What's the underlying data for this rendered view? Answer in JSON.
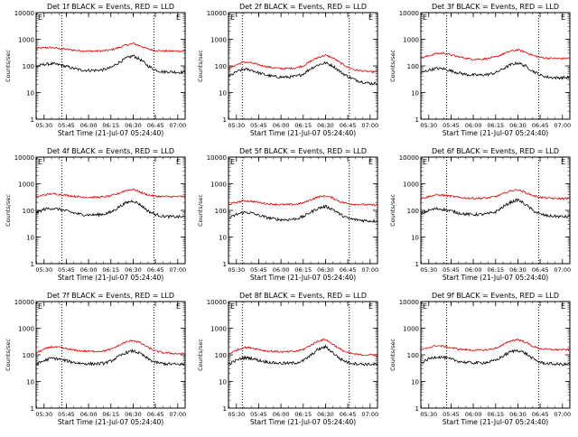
{
  "xtick_labels": [
    "05:30",
    "05:45",
    "06:00",
    "06:15",
    "06:30",
    "06:45",
    "07:00"
  ],
  "ytick_labels": [
    "1",
    "10",
    "100",
    "1000",
    "10000"
  ],
  "ylabel": "Counts/sec",
  "xlabel": "Start Time (21-Jul-07 05:24:40)",
  "colors": {
    "events": "#000000",
    "lld": "#dd0000",
    "axes": "#000000"
  },
  "chart_data": [
    {
      "type": "line",
      "title": "Det 1f BLACK = Events, RED = LLD",
      "marker": "E",
      "xlabel": "Start Time (21-Jul-07 05:24:40)",
      "ylabel": "Counts/sec",
      "xticks": [
        "05:30",
        "05:45",
        "06:00",
        "06:15",
        "06:30",
        "06:45",
        "07:00"
      ],
      "yscale": "log",
      "ylim": [
        1,
        10000
      ],
      "x": [
        "05:25",
        "05:30",
        "05:35",
        "05:40",
        "05:45",
        "05:50",
        "05:55",
        "06:00",
        "06:05",
        "06:10",
        "06:15",
        "06:20",
        "06:25",
        "06:30",
        "06:35",
        "06:40",
        "06:45",
        "06:50",
        "06:55",
        "07:00",
        "07:05"
      ],
      "vlines": [
        "05:42",
        "06:44"
      ],
      "series": [
        {
          "name": "LLD",
          "color": "#dd0000",
          "values": [
            450,
            480,
            490,
            450,
            420,
            390,
            370,
            360,
            360,
            370,
            400,
            480,
            600,
            700,
            560,
            430,
            380,
            360,
            360,
            360,
            360
          ]
        },
        {
          "name": "Events",
          "color": "#000000",
          "values": [
            95,
            115,
            120,
            110,
            95,
            80,
            70,
            68,
            68,
            72,
            85,
            130,
            190,
            240,
            170,
            100,
            70,
            60,
            60,
            58,
            58
          ]
        }
      ]
    },
    {
      "type": "line",
      "title": "Det 2f BLACK = Events, RED = LLD",
      "marker": "E",
      "xlabel": "Start Time (21-Jul-07 05:24:40)",
      "ylabel": "Counts/sec",
      "xticks": [
        "05:30",
        "05:45",
        "06:00",
        "06:15",
        "06:30",
        "06:45",
        "07:00"
      ],
      "yscale": "log",
      "ylim": [
        1,
        10000
      ],
      "x": [
        "05:25",
        "05:30",
        "05:35",
        "05:40",
        "05:45",
        "05:50",
        "05:55",
        "06:00",
        "06:05",
        "06:10",
        "06:15",
        "06:20",
        "06:25",
        "06:30",
        "06:35",
        "06:40",
        "06:45",
        "06:50",
        "06:55",
        "07:00",
        "07:05"
      ],
      "vlines": [
        "05:34",
        "06:46"
      ],
      "series": [
        {
          "name": "LLD",
          "color": "#dd0000",
          "values": [
            80,
            110,
            140,
            130,
            110,
            95,
            85,
            80,
            80,
            85,
            100,
            150,
            210,
            250,
            200,
            130,
            90,
            70,
            65,
            60,
            60
          ]
        },
        {
          "name": "Events",
          "color": "#000000",
          "values": [
            40,
            60,
            75,
            70,
            55,
            45,
            40,
            38,
            38,
            40,
            50,
            80,
            110,
            130,
            100,
            60,
            40,
            30,
            25,
            22,
            22
          ]
        }
      ]
    },
    {
      "type": "line",
      "title": "Det 3f BLACK = Events, RED = LLD",
      "marker": "E",
      "xlabel": "Start Time (21-Jul-07 05:24:40)",
      "ylabel": "Counts/sec",
      "xticks": [
        "05:30",
        "05:45",
        "06:00",
        "06:15",
        "06:30",
        "06:45",
        "07:00"
      ],
      "yscale": "log",
      "ylim": [
        1,
        10000
      ],
      "x": [
        "05:25",
        "05:30",
        "05:35",
        "05:40",
        "05:45",
        "05:50",
        "05:55",
        "06:00",
        "06:05",
        "06:10",
        "06:15",
        "06:20",
        "06:25",
        "06:30",
        "06:35",
        "06:40",
        "06:45",
        "06:50",
        "06:55",
        "07:00",
        "07:05"
      ],
      "vlines": [
        "05:42",
        "06:44"
      ],
      "series": [
        {
          "name": "LLD",
          "color": "#dd0000",
          "values": [
            200,
            240,
            290,
            300,
            260,
            220,
            195,
            180,
            180,
            190,
            215,
            280,
            360,
            400,
            330,
            250,
            210,
            195,
            190,
            190,
            195
          ]
        },
        {
          "name": "Events",
          "color": "#000000",
          "values": [
            55,
            70,
            80,
            78,
            65,
            55,
            48,
            45,
            45,
            48,
            55,
            78,
            110,
            130,
            100,
            65,
            45,
            38,
            36,
            36,
            37
          ]
        }
      ]
    },
    {
      "type": "line",
      "title": "Det 4f BLACK = Events, RED = LLD",
      "marker": "E",
      "xlabel": "Start Time (21-Jul-07 05:24:40)",
      "ylabel": "Counts/sec",
      "xticks": [
        "05:30",
        "05:45",
        "06:00",
        "06:15",
        "06:30",
        "06:45",
        "07:00"
      ],
      "yscale": "log",
      "ylim": [
        1,
        10000
      ],
      "x": [
        "05:25",
        "05:30",
        "05:35",
        "05:40",
        "05:45",
        "05:50",
        "05:55",
        "06:00",
        "06:05",
        "06:10",
        "06:15",
        "06:20",
        "06:25",
        "06:30",
        "06:35",
        "06:40",
        "06:45",
        "06:50",
        "06:55",
        "07:00",
        "07:05"
      ],
      "vlines": [
        "05:42",
        "06:44"
      ],
      "series": [
        {
          "name": "LLD",
          "color": "#dd0000",
          "values": [
            320,
            380,
            420,
            400,
            370,
            340,
            320,
            310,
            310,
            320,
            350,
            430,
            560,
            620,
            480,
            380,
            340,
            330,
            330,
            330,
            330
          ]
        },
        {
          "name": "Events",
          "color": "#000000",
          "values": [
            80,
            110,
            120,
            110,
            95,
            80,
            70,
            68,
            68,
            72,
            85,
            130,
            190,
            230,
            160,
            95,
            70,
            60,
            58,
            57,
            57
          ]
        }
      ]
    },
    {
      "type": "line",
      "title": "Det 5f BLACK = Events, RED = LLD",
      "marker": "E",
      "xlabel": "Start Time (21-Jul-07 05:24:40)",
      "ylabel": "Counts/sec",
      "xticks": [
        "05:30",
        "05:45",
        "06:00",
        "06:15",
        "06:30",
        "06:45",
        "07:00"
      ],
      "yscale": "log",
      "ylim": [
        1,
        10000
      ],
      "x": [
        "05:25",
        "05:30",
        "05:35",
        "05:40",
        "05:45",
        "05:50",
        "05:55",
        "06:00",
        "06:05",
        "06:10",
        "06:15",
        "06:20",
        "06:25",
        "06:30",
        "06:35",
        "06:40",
        "06:45",
        "06:50",
        "06:55",
        "07:00",
        "07:05"
      ],
      "vlines": [
        "05:34",
        "06:46"
      ],
      "series": [
        {
          "name": "LLD",
          "color": "#dd0000",
          "values": [
            170,
            200,
            230,
            220,
            200,
            180,
            170,
            165,
            165,
            170,
            190,
            250,
            320,
            350,
            290,
            210,
            180,
            170,
            165,
            160,
            160
          ]
        },
        {
          "name": "Events",
          "color": "#000000",
          "values": [
            50,
            70,
            85,
            80,
            65,
            55,
            48,
            45,
            45,
            48,
            58,
            85,
            120,
            140,
            110,
            70,
            50,
            45,
            42,
            40,
            40
          ]
        }
      ]
    },
    {
      "type": "line",
      "title": "Det 6f BLACK = Events, RED = LLD",
      "marker": "E",
      "xlabel": "Start Time (21-Jul-07 05:24:40)",
      "ylabel": "Counts/sec",
      "xticks": [
        "05:30",
        "05:45",
        "06:00",
        "06:15",
        "06:30",
        "06:45",
        "07:00"
      ],
      "yscale": "log",
      "ylim": [
        1,
        10000
      ],
      "x": [
        "05:25",
        "05:30",
        "05:35",
        "05:40",
        "05:45",
        "05:50",
        "05:55",
        "06:00",
        "06:05",
        "06:10",
        "06:15",
        "06:20",
        "06:25",
        "06:30",
        "06:35",
        "06:40",
        "06:45",
        "06:50",
        "06:55",
        "07:00",
        "07:05"
      ],
      "vlines": [
        "05:42",
        "06:44"
      ],
      "series": [
        {
          "name": "LLD",
          "color": "#dd0000",
          "values": [
            280,
            330,
            380,
            370,
            340,
            310,
            290,
            285,
            285,
            295,
            330,
            420,
            540,
            600,
            470,
            360,
            310,
            290,
            280,
            280,
            280
          ]
        },
        {
          "name": "Events",
          "color": "#000000",
          "values": [
            75,
            100,
            115,
            110,
            95,
            80,
            72,
            70,
            70,
            74,
            88,
            135,
            200,
            250,
            170,
            100,
            72,
            62,
            60,
            58,
            58
          ]
        }
      ]
    },
    {
      "type": "line",
      "title": "Det 7f BLACK = Events, RED = LLD",
      "marker": "E",
      "xlabel": "Start Time (21-Jul-07 05:24:40)",
      "ylabel": "Counts/sec",
      "xticks": [
        "05:30",
        "05:45",
        "06:00",
        "06:15",
        "06:30",
        "06:45",
        "07:00"
      ],
      "yscale": "log",
      "ylim": [
        1,
        10000
      ],
      "x": [
        "05:25",
        "05:30",
        "05:35",
        "05:40",
        "05:45",
        "05:50",
        "05:55",
        "06:00",
        "06:05",
        "06:10",
        "06:15",
        "06:20",
        "06:25",
        "06:30",
        "06:35",
        "06:40",
        "06:45",
        "06:50",
        "06:55",
        "07:00",
        "07:05"
      ],
      "vlines": [
        "05:42",
        "06:44"
      ],
      "series": [
        {
          "name": "LLD",
          "color": "#dd0000",
          "values": [
            120,
            160,
            200,
            190,
            170,
            150,
            140,
            135,
            135,
            140,
            160,
            220,
            300,
            350,
            280,
            190,
            140,
            120,
            115,
            110,
            110
          ]
        },
        {
          "name": "Events",
          "color": "#000000",
          "values": [
            45,
            60,
            75,
            70,
            60,
            52,
            48,
            46,
            46,
            48,
            58,
            85,
            120,
            140,
            110,
            70,
            52,
            47,
            45,
            44,
            44
          ]
        }
      ]
    },
    {
      "type": "line",
      "title": "Det 8f BLACK = Events, RED = LLD",
      "marker": "E",
      "xlabel": "Start Time (21-Jul-07 05:24:40)",
      "ylabel": "Counts/sec",
      "xticks": [
        "05:30",
        "05:45",
        "06:00",
        "06:15",
        "06:30",
        "06:45",
        "07:00"
      ],
      "yscale": "log",
      "ylim": [
        1,
        10000
      ],
      "x": [
        "05:25",
        "05:30",
        "05:35",
        "05:40",
        "05:45",
        "05:50",
        "05:55",
        "06:00",
        "06:05",
        "06:10",
        "06:15",
        "06:20",
        "06:25",
        "06:30",
        "06:35",
        "06:40",
        "06:45",
        "06:50",
        "06:55",
        "07:00",
        "07:05"
      ],
      "vlines": [
        "05:34",
        "06:46"
      ],
      "series": [
        {
          "name": "LLD",
          "color": "#dd0000",
          "values": [
            110,
            150,
            190,
            185,
            160,
            140,
            135,
            130,
            130,
            135,
            160,
            230,
            330,
            380,
            250,
            160,
            120,
            105,
            100,
            100,
            100
          ]
        },
        {
          "name": "Events",
          "color": "#000000",
          "values": [
            45,
            62,
            78,
            75,
            62,
            55,
            50,
            48,
            48,
            50,
            60,
            95,
            160,
            200,
            120,
            70,
            52,
            47,
            45,
            44,
            44
          ]
        }
      ]
    },
    {
      "type": "line",
      "title": "Det 9f BLACK = Events, RED = LLD",
      "marker": "E",
      "xlabel": "Start Time (21-Jul-07 05:24:40)",
      "ylabel": "Counts/sec",
      "xticks": [
        "05:30",
        "05:45",
        "06:00",
        "06:15",
        "06:30",
        "06:45",
        "07:00"
      ],
      "yscale": "log",
      "ylim": [
        1,
        10000
      ],
      "x": [
        "05:25",
        "05:30",
        "05:35",
        "05:40",
        "05:45",
        "05:50",
        "05:55",
        "06:00",
        "06:05",
        "06:10",
        "06:15",
        "06:20",
        "06:25",
        "06:30",
        "06:35",
        "06:40",
        "06:45",
        "06:50",
        "06:55",
        "07:00",
        "07:05"
      ],
      "vlines": [
        "05:42",
        "06:44"
      ],
      "series": [
        {
          "name": "LLD",
          "color": "#dd0000",
          "values": [
            150,
            190,
            220,
            210,
            185,
            165,
            155,
            150,
            150,
            155,
            175,
            240,
            330,
            380,
            300,
            210,
            170,
            160,
            155,
            155,
            155
          ]
        },
        {
          "name": "Events",
          "color": "#000000",
          "values": [
            50,
            70,
            85,
            80,
            68,
            58,
            52,
            50,
            50,
            53,
            62,
            90,
            130,
            150,
            115,
            72,
            52,
            47,
            45,
            44,
            44
          ]
        }
      ]
    }
  ]
}
